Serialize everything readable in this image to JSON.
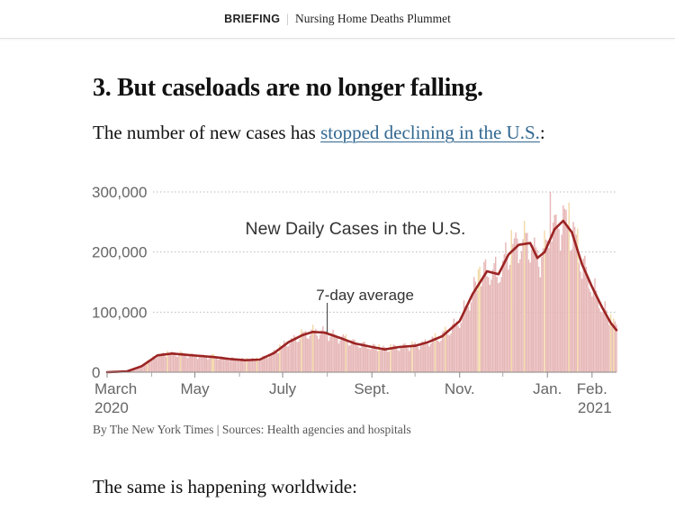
{
  "header": {
    "kicker": "BRIEFING",
    "separator": "|",
    "title": "Nursing Home Deaths Plummet"
  },
  "article": {
    "headline": "3. But caseloads are no longer falling.",
    "intro_before": "The number of new cases has ",
    "intro_link": "stopped declining in the U.S.",
    "intro_after": ":",
    "credit": "By The New York Times | Sources: Health agencies and hospitals",
    "subhead": "The same is happening worldwide:"
  },
  "colors": {
    "line": "#9b2423",
    "bars": "#e7b7b7",
    "bars_highlight": "#f3d9a8",
    "link": "#326891"
  },
  "chart_data": {
    "type": "bar",
    "title": "New Daily Cases in the U.S.",
    "annotation": "7-day average",
    "annotation_date": "2020-08-01",
    "y_ticks": [
      "300,000",
      "200,000",
      "100,000",
      "0"
    ],
    "y_tick_values": [
      300000,
      200000,
      100000,
      0
    ],
    "ylim": [
      0,
      300000
    ],
    "x_ticks": [
      {
        "date": "2020-03-01",
        "label": "March",
        "sublabel": "2020"
      },
      {
        "date": "2020-05-01",
        "label": "May"
      },
      {
        "date": "2020-07-01",
        "label": "July"
      },
      {
        "date": "2020-09-01",
        "label": "Sept."
      },
      {
        "date": "2020-11-01",
        "label": "Nov."
      },
      {
        "date": "2021-01-01",
        "label": "Jan."
      },
      {
        "date": "2021-02-01",
        "label": "Feb.",
        "sublabel": "2021"
      }
    ],
    "x_range": [
      "2020-03-01",
      "2021-02-18"
    ],
    "series": [
      {
        "name": "7-day average",
        "points": [
          [
            "2020-03-01",
            0
          ],
          [
            "2020-03-15",
            1500
          ],
          [
            "2020-03-25",
            10000
          ],
          [
            "2020-04-05",
            28000
          ],
          [
            "2020-04-15",
            31000
          ],
          [
            "2020-04-25",
            29000
          ],
          [
            "2020-05-05",
            27000
          ],
          [
            "2020-05-15",
            25000
          ],
          [
            "2020-05-25",
            22000
          ],
          [
            "2020-06-05",
            20000
          ],
          [
            "2020-06-15",
            21000
          ],
          [
            "2020-06-25",
            32000
          ],
          [
            "2020-07-05",
            50000
          ],
          [
            "2020-07-15",
            62000
          ],
          [
            "2020-07-22",
            67000
          ],
          [
            "2020-07-30",
            66000
          ],
          [
            "2020-08-10",
            57000
          ],
          [
            "2020-08-20",
            48000
          ],
          [
            "2020-09-01",
            42000
          ],
          [
            "2020-09-10",
            38000
          ],
          [
            "2020-09-20",
            42000
          ],
          [
            "2020-10-01",
            44000
          ],
          [
            "2020-10-10",
            50000
          ],
          [
            "2020-10-20",
            60000
          ],
          [
            "2020-11-01",
            85000
          ],
          [
            "2020-11-10",
            130000
          ],
          [
            "2020-11-20",
            168000
          ],
          [
            "2020-11-28",
            163000
          ],
          [
            "2020-12-05",
            196000
          ],
          [
            "2020-12-12",
            212000
          ],
          [
            "2020-12-20",
            215000
          ],
          [
            "2020-12-25",
            190000
          ],
          [
            "2020-12-30",
            200000
          ],
          [
            "2021-01-06",
            238000
          ],
          [
            "2021-01-12",
            252000
          ],
          [
            "2021-01-18",
            233000
          ],
          [
            "2021-01-25",
            180000
          ],
          [
            "2021-02-01",
            142000
          ],
          [
            "2021-02-08",
            108000
          ],
          [
            "2021-02-14",
            82000
          ],
          [
            "2021-02-18",
            70000
          ]
        ]
      }
    ]
  }
}
